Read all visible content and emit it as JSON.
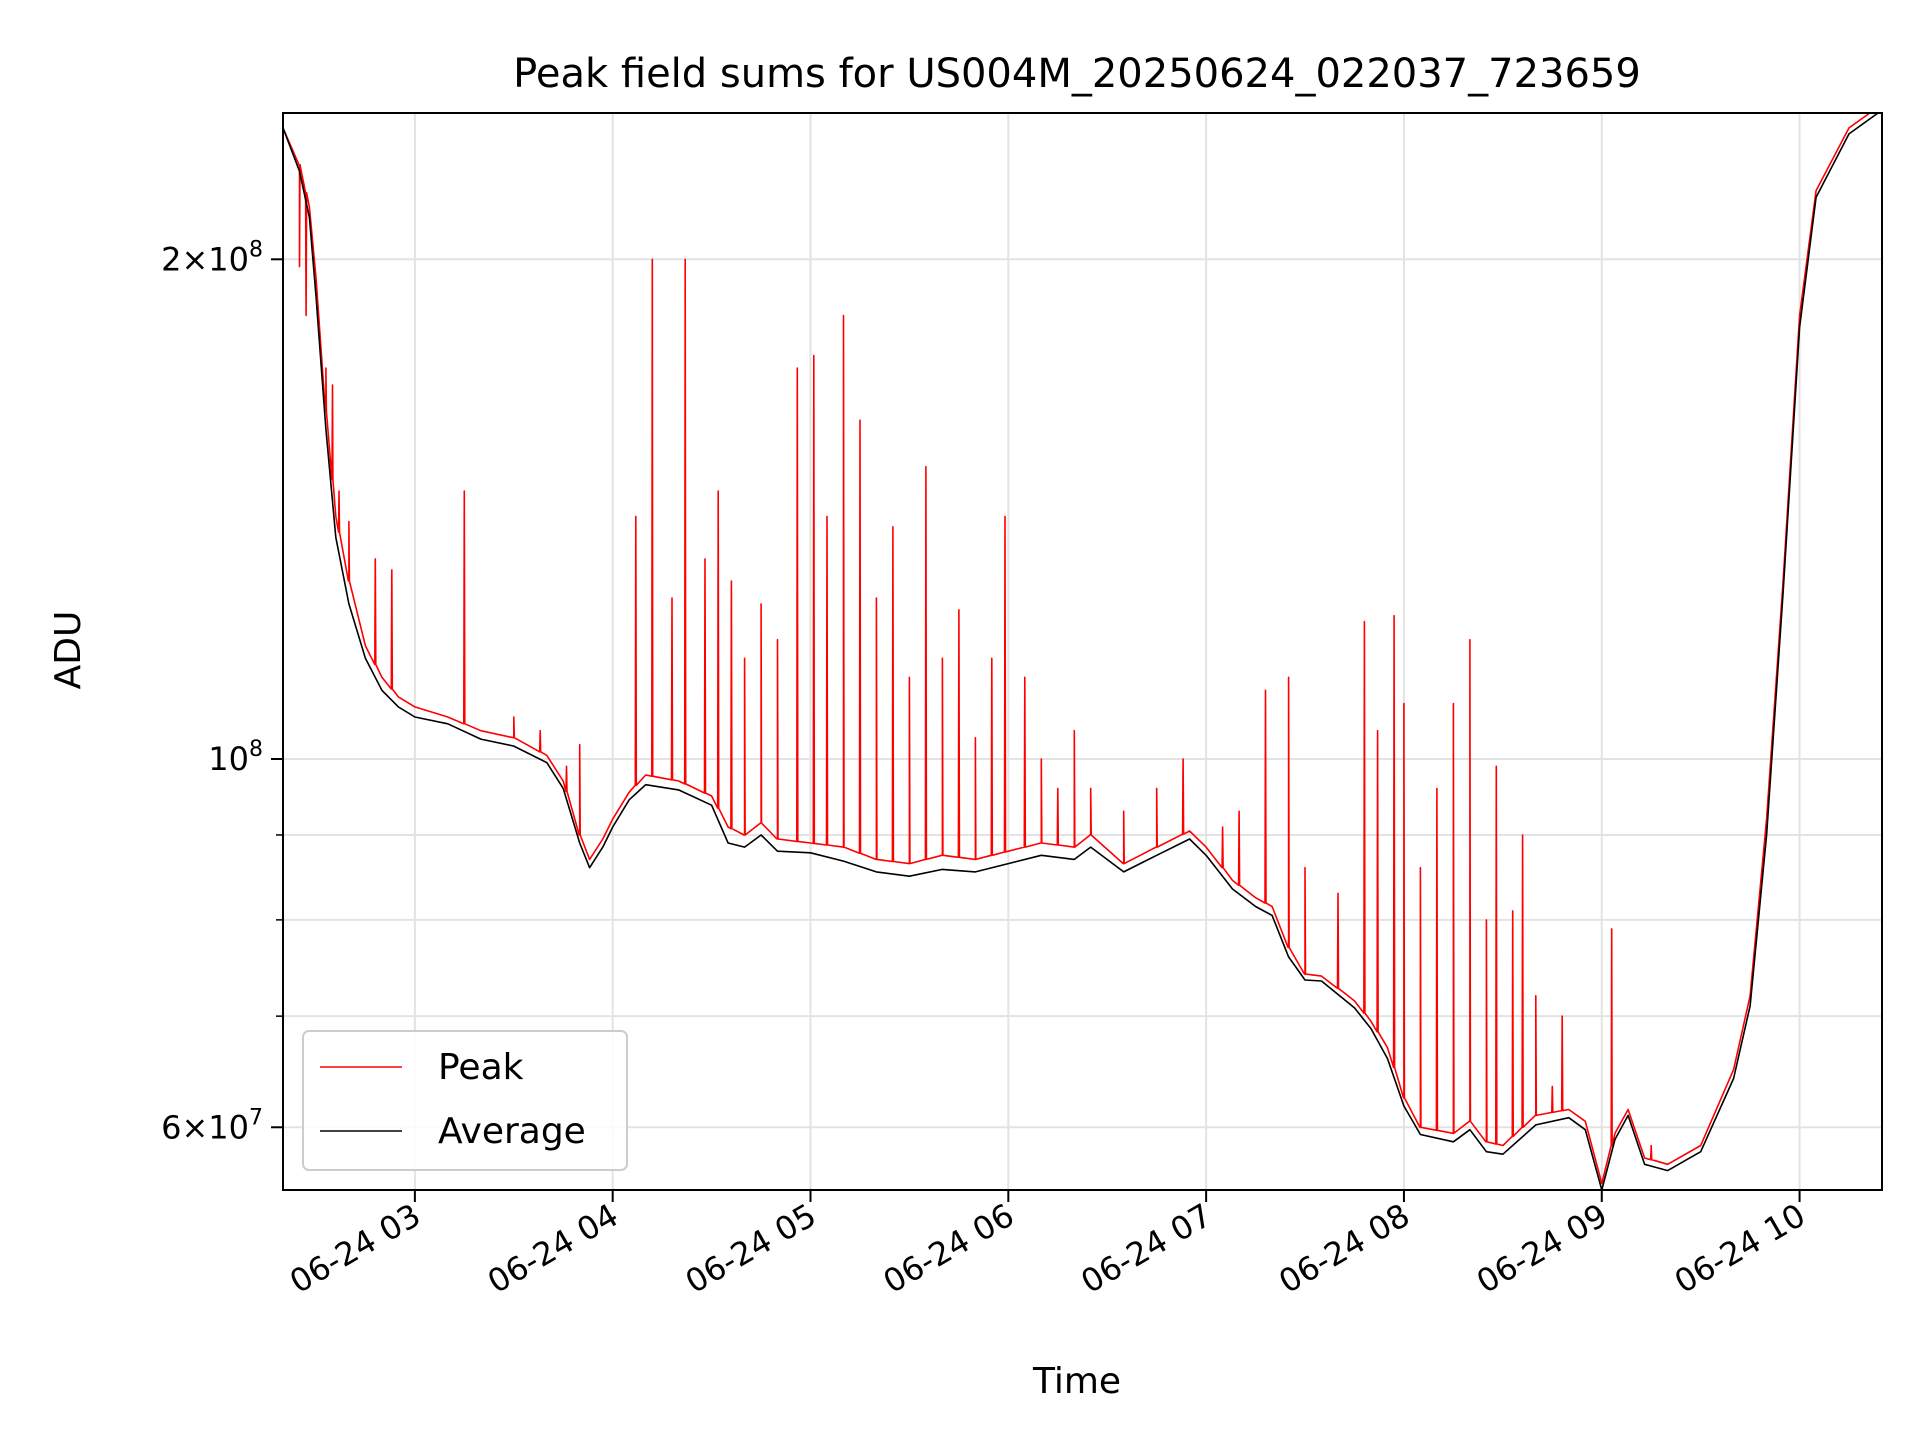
{
  "chart_data": {
    "type": "line",
    "title": "Peak field sums for US004M_20250624_022037_723659",
    "xlabel": "Time",
    "ylabel": "ADU",
    "x_ticks": [
      {
        "value": "2025-06-24T03:00",
        "label": "06-24 03"
      },
      {
        "value": "2025-06-24T04:00",
        "label": "06-24 04"
      },
      {
        "value": "2025-06-24T05:00",
        "label": "06-24 05"
      },
      {
        "value": "2025-06-24T06:00",
        "label": "06-24 06"
      },
      {
        "value": "2025-06-24T07:00",
        "label": "06-24 07"
      },
      {
        "value": "2025-06-24T08:00",
        "label": "06-24 08"
      },
      {
        "value": "2025-06-24T09:00",
        "label": "06-24 09"
      },
      {
        "value": "2025-06-24T10:00",
        "label": "06-24 10"
      }
    ],
    "y_ticks": [
      {
        "value": 200000000,
        "mantissa": "2",
        "exponent": "8"
      },
      {
        "value": 100000000,
        "mantissa": "",
        "exponent": "8"
      },
      {
        "value": 60000000,
        "mantissa": "6",
        "exponent": "7"
      }
    ],
    "y_minor_ticks": [
      70000000,
      80000000,
      90000000
    ],
    "xlim": [
      "2025-06-24T02:20",
      "2025-06-24T10:25"
    ],
    "ylim": [
      55000000,
      245000000
    ],
    "y_scale": "log",
    "grid": true,
    "legend_position": "lower-left",
    "series": [
      {
        "name": "Peak",
        "color": "#ff0000",
        "points": [
          [
            "02:20",
            240000000
          ],
          [
            "02:25",
            228000000
          ],
          [
            "02:28",
            215000000
          ],
          [
            "02:30",
            195000000
          ],
          [
            "02:33",
            162000000
          ],
          [
            "02:36",
            140000000
          ],
          [
            "02:40",
            128000000
          ],
          [
            "02:45",
            117000000
          ],
          [
            "02:50",
            112000000
          ],
          [
            "02:55",
            109000000
          ],
          [
            "03:00",
            107500000
          ],
          [
            "03:10",
            106000000
          ],
          [
            "03:20",
            104000000
          ],
          [
            "03:30",
            103000000
          ],
          [
            "03:40",
            100500000
          ],
          [
            "03:45",
            97000000
          ],
          [
            "03:50",
            90000000
          ],
          [
            "03:53",
            87000000
          ],
          [
            "03:57",
            89500000
          ],
          [
            "04:00",
            92000000
          ],
          [
            "04:05",
            95500000
          ],
          [
            "04:10",
            97800000
          ],
          [
            "04:20",
            97000000
          ],
          [
            "04:30",
            95000000
          ],
          [
            "04:35",
            91000000
          ],
          [
            "04:40",
            90000000
          ],
          [
            "04:45",
            91500000
          ],
          [
            "04:50",
            89500000
          ],
          [
            "05:00",
            89000000
          ],
          [
            "05:10",
            88500000
          ],
          [
            "05:20",
            87000000
          ],
          [
            "05:30",
            86500000
          ],
          [
            "05:40",
            87500000
          ],
          [
            "05:50",
            87000000
          ],
          [
            "06:00",
            88000000
          ],
          [
            "06:10",
            89000000
          ],
          [
            "06:20",
            88500000
          ],
          [
            "06:25",
            90000000
          ],
          [
            "06:35",
            86500000
          ],
          [
            "06:45",
            88500000
          ],
          [
            "06:55",
            90500000
          ],
          [
            "07:00",
            88500000
          ],
          [
            "07:08",
            84500000
          ],
          [
            "07:15",
            82500000
          ],
          [
            "07:20",
            81500000
          ],
          [
            "07:25",
            77000000
          ],
          [
            "07:30",
            74200000
          ],
          [
            "07:35",
            74000000
          ],
          [
            "07:45",
            71500000
          ],
          [
            "07:50",
            69500000
          ],
          [
            "07:55",
            67000000
          ],
          [
            "08:00",
            62500000
          ],
          [
            "08:05",
            60000000
          ],
          [
            "08:15",
            59500000
          ],
          [
            "08:20",
            60500000
          ],
          [
            "08:25",
            58800000
          ],
          [
            "08:30",
            58500000
          ],
          [
            "08:40",
            61000000
          ],
          [
            "08:50",
            61500000
          ],
          [
            "08:55",
            60500000
          ],
          [
            "09:00",
            55500000
          ],
          [
            "09:04",
            59500000
          ],
          [
            "09:08",
            61500000
          ],
          [
            "09:13",
            57500000
          ],
          [
            "09:20",
            57000000
          ],
          [
            "09:30",
            58500000
          ],
          [
            "09:40",
            65000000
          ],
          [
            "09:45",
            72000000
          ],
          [
            "09:50",
            92000000
          ],
          [
            "09:55",
            128000000
          ],
          [
            "10:00",
            185000000
          ],
          [
            "10:05",
            220000000
          ],
          [
            "10:15",
            240000000
          ],
          [
            "10:25",
            248000000
          ]
        ],
        "spikes": [
          [
            "02:25",
            198000000
          ],
          [
            "02:27",
            185000000
          ],
          [
            "02:33",
            172000000
          ],
          [
            "02:35",
            168000000
          ],
          [
            "02:37",
            145000000
          ],
          [
            "02:40",
            139000000
          ],
          [
            "02:48",
            132000000
          ],
          [
            "02:53",
            130000000
          ],
          [
            "03:15",
            145000000
          ],
          [
            "03:30",
            106000000
          ],
          [
            "03:38",
            104000000
          ],
          [
            "03:46",
            99000000
          ],
          [
            "03:50",
            102000000
          ],
          [
            "04:07",
            140000000
          ],
          [
            "04:12",
            200000000
          ],
          [
            "04:18",
            125000000
          ],
          [
            "04:22",
            200000000
          ],
          [
            "04:28",
            132000000
          ],
          [
            "04:32",
            145000000
          ],
          [
            "04:36",
            128000000
          ],
          [
            "04:40",
            115000000
          ],
          [
            "04:45",
            124000000
          ],
          [
            "04:50",
            118000000
          ],
          [
            "04:56",
            172000000
          ],
          [
            "05:01",
            175000000
          ],
          [
            "05:05",
            140000000
          ],
          [
            "05:10",
            185000000
          ],
          [
            "05:15",
            160000000
          ],
          [
            "05:20",
            125000000
          ],
          [
            "05:25",
            138000000
          ],
          [
            "05:30",
            112000000
          ],
          [
            "05:35",
            150000000
          ],
          [
            "05:40",
            115000000
          ],
          [
            "05:45",
            123000000
          ],
          [
            "05:50",
            103000000
          ],
          [
            "05:55",
            115000000
          ],
          [
            "05:59",
            140000000
          ],
          [
            "06:05",
            112000000
          ],
          [
            "06:10",
            100000000
          ],
          [
            "06:15",
            96000000
          ],
          [
            "06:20",
            104000000
          ],
          [
            "06:25",
            96000000
          ],
          [
            "06:35",
            93000000
          ],
          [
            "06:45",
            96000000
          ],
          [
            "06:53",
            100000000
          ],
          [
            "07:05",
            91000000
          ],
          [
            "07:10",
            93000000
          ],
          [
            "07:18",
            110000000
          ],
          [
            "07:25",
            112000000
          ],
          [
            "07:30",
            86000000
          ],
          [
            "07:40",
            83000000
          ],
          [
            "07:48",
            121000000
          ],
          [
            "07:52",
            104000000
          ],
          [
            "07:57",
            122000000
          ],
          [
            "08:00",
            108000000
          ],
          [
            "08:05",
            86000000
          ],
          [
            "08:10",
            96000000
          ],
          [
            "08:15",
            108000000
          ],
          [
            "08:20",
            118000000
          ],
          [
            "08:25",
            80000000
          ],
          [
            "08:28",
            99000000
          ],
          [
            "08:33",
            81000000
          ],
          [
            "08:36",
            90000000
          ],
          [
            "08:40",
            72000000
          ],
          [
            "08:45",
            63500000
          ],
          [
            "08:48",
            70000000
          ],
          [
            "09:03",
            79000000
          ],
          [
            "09:15",
            58500000
          ]
        ]
      },
      {
        "name": "Average",
        "color": "#000000",
        "points": [
          [
            "02:20",
            240000000
          ],
          [
            "02:25",
            226000000
          ],
          [
            "02:28",
            212000000
          ],
          [
            "02:30",
            190000000
          ],
          [
            "02:33",
            158000000
          ],
          [
            "02:36",
            136000000
          ],
          [
            "02:40",
            124000000
          ],
          [
            "02:45",
            115000000
          ],
          [
            "02:50",
            110000000
          ],
          [
            "02:55",
            107500000
          ],
          [
            "03:00",
            106000000
          ],
          [
            "03:10",
            105000000
          ],
          [
            "03:20",
            102800000
          ],
          [
            "03:30",
            101800000
          ],
          [
            "03:40",
            99500000
          ],
          [
            "03:45",
            96000000
          ],
          [
            "03:50",
            89000000
          ],
          [
            "03:53",
            86000000
          ],
          [
            "03:57",
            88500000
          ],
          [
            "04:00",
            91000000
          ],
          [
            "04:05",
            94500000
          ],
          [
            "04:10",
            96500000
          ],
          [
            "04:20",
            95800000
          ],
          [
            "04:30",
            93800000
          ],
          [
            "04:35",
            89000000
          ],
          [
            "04:40",
            88500000
          ],
          [
            "04:45",
            90000000
          ],
          [
            "04:50",
            88000000
          ],
          [
            "05:00",
            87800000
          ],
          [
            "05:10",
            86800000
          ],
          [
            "05:20",
            85500000
          ],
          [
            "05:30",
            85000000
          ],
          [
            "05:40",
            85800000
          ],
          [
            "05:50",
            85500000
          ],
          [
            "06:00",
            86500000
          ],
          [
            "06:10",
            87500000
          ],
          [
            "06:20",
            87000000
          ],
          [
            "06:25",
            88500000
          ],
          [
            "06:35",
            85500000
          ],
          [
            "06:45",
            87500000
          ],
          [
            "06:55",
            89500000
          ],
          [
            "07:00",
            87500000
          ],
          [
            "07:08",
            83500000
          ],
          [
            "07:15",
            81500000
          ],
          [
            "07:20",
            80500000
          ],
          [
            "07:25",
            76000000
          ],
          [
            "07:30",
            73600000
          ],
          [
            "07:35",
            73500000
          ],
          [
            "07:45",
            70800000
          ],
          [
            "07:50",
            68800000
          ],
          [
            "07:55",
            66000000
          ],
          [
            "08:00",
            61800000
          ],
          [
            "08:05",
            59400000
          ],
          [
            "08:15",
            58800000
          ],
          [
            "08:20",
            59800000
          ],
          [
            "08:25",
            58000000
          ],
          [
            "08:30",
            57800000
          ],
          [
            "08:40",
            60200000
          ],
          [
            "08:50",
            60800000
          ],
          [
            "08:55",
            59800000
          ],
          [
            "09:00",
            55000000
          ],
          [
            "09:04",
            59000000
          ],
          [
            "09:08",
            61000000
          ],
          [
            "09:13",
            57000000
          ],
          [
            "09:20",
            56500000
          ],
          [
            "09:30",
            58000000
          ],
          [
            "09:40",
            64200000
          ],
          [
            "09:45",
            71000000
          ],
          [
            "09:50",
            90000000
          ],
          [
            "09:55",
            126000000
          ],
          [
            "10:00",
            182000000
          ],
          [
            "10:05",
            218000000
          ],
          [
            "10:15",
            238000000
          ],
          [
            "10:25",
            246000000
          ]
        ]
      }
    ]
  }
}
